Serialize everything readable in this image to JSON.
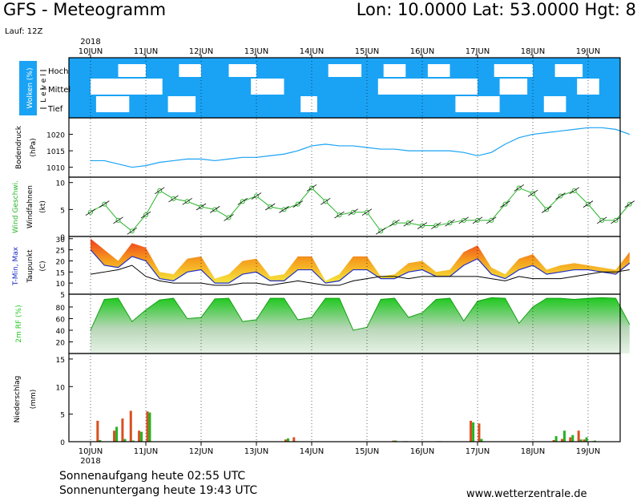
{
  "header": {
    "title": "GFS - Meteogramm",
    "location": "Lon: 10.0000  Lat: 53.0000  Hgt: 8",
    "run": "Lauf: 12Z"
  },
  "footer": {
    "sunrise": "Sonnenaufgang heute 02:55 UTC",
    "sunset": "Sonnenuntergang heute 19:43 UTC",
    "site": "www.wetterzentrale.de"
  },
  "colors": {
    "cloud_bg": "#1aa3f5",
    "pressure_line": "#1aa3f5",
    "wind_line": "#28b428",
    "precip_rain": "#d94f1e",
    "precip_conv": "#22b422",
    "rh_fill": "#22c822"
  },
  "chart_data": {
    "type": "line",
    "x_dates": [
      "10JUN",
      "11JUN",
      "12JUN",
      "13JUN",
      "14JUN",
      "15JUN",
      "16JUN",
      "17JUN",
      "18JUN",
      "19JUN"
    ],
    "year": "2018",
    "panels": [
      {
        "id": "clouds",
        "ylabel": [
          "Wolken (%)",
          "L e v e l"
        ],
        "levels": [
          "Hoch",
          "Mittel",
          "Tief"
        ],
        "clear_patches_hoch": [
          [
            0.5,
            1.0
          ],
          [
            1.6,
            2.0
          ],
          [
            2.5,
            3.0
          ],
          [
            4.3,
            4.9
          ],
          [
            5.3,
            5.7
          ],
          [
            6.1,
            6.5
          ],
          [
            7.3,
            8.0
          ],
          [
            8.4,
            8.9
          ]
        ],
        "clear_patches_mittel": [
          [
            0.0,
            1.3
          ],
          [
            2.9,
            3.5
          ],
          [
            5.2,
            7.0
          ],
          [
            7.4,
            7.9
          ],
          [
            8.8,
            9.2
          ]
        ],
        "clear_patches_tief": [
          [
            0.1,
            0.7
          ],
          [
            1.4,
            1.9
          ],
          [
            3.8,
            4.1
          ],
          [
            6.6,
            7.4
          ],
          [
            8.2,
            8.6
          ]
        ]
      },
      {
        "id": "pressure",
        "ylabel": [
          "Bodendruck",
          "(hPa)"
        ],
        "ylim": [
          1007,
          1025
        ],
        "yticks": [
          1010,
          1015,
          1020
        ],
        "series": [
          {
            "name": "",
            "t": [
              0,
              0.25,
              0.5,
              0.75,
              1.0,
              1.25,
              1.5,
              1.75,
              2.0,
              2.25,
              2.5,
              2.75,
              3.0,
              3.25,
              3.5,
              3.75,
              4.0,
              4.25,
              4.5,
              4.75,
              5.0,
              5.25,
              5.5,
              5.75,
              6.0,
              6.25,
              6.5,
              6.75,
              7.0,
              7.25,
              7.5,
              7.75,
              8.0,
              8.25,
              8.5,
              8.75,
              9.0,
              9.25,
              9.5,
              9.75
            ],
            "values": [
              1012,
              1012,
              1011,
              1010,
              1010.5,
              1011.5,
              1012,
              1012.5,
              1012.5,
              1012,
              1012.5,
              1013,
              1013,
              1013.5,
              1014,
              1015,
              1016.5,
              1017,
              1016.5,
              1016.5,
              1016,
              1015.5,
              1015.5,
              1015,
              1015,
              1015,
              1015,
              1014.5,
              1013.5,
              1014.5,
              1017,
              1019,
              1020,
              1020.5,
              1021,
              1021.5,
              1022,
              1022,
              1021.5,
              1020
            ]
          }
        ]
      },
      {
        "id": "wind",
        "ylabel": [
          "Wind Geschwi.",
          "Windfahnen",
          "(kt)"
        ],
        "ylim": [
          0,
          11
        ],
        "yticks": [
          0,
          5,
          10
        ],
        "series": [
          {
            "name": "Wind Geschwi.",
            "t": [
              0,
              0.25,
              0.5,
              0.75,
              1.0,
              1.25,
              1.5,
              1.75,
              2.0,
              2.25,
              2.5,
              2.75,
              3.0,
              3.25,
              3.5,
              3.75,
              4.0,
              4.25,
              4.5,
              4.75,
              5.0,
              5.25,
              5.5,
              5.75,
              6.0,
              6.25,
              6.5,
              6.75,
              7.0,
              7.25,
              7.5,
              7.75,
              8.0,
              8.25,
              8.5,
              8.75,
              9.0,
              9.25,
              9.5,
              9.75
            ],
            "values": [
              4.5,
              6,
              3,
              1,
              4,
              8.5,
              7,
              6.5,
              5.5,
              5,
              3.5,
              6.5,
              7.5,
              5.5,
              5,
              6,
              9,
              6.5,
              4,
              4.5,
              4.5,
              1,
              2.5,
              2.5,
              2,
              2,
              2.5,
              3,
              3,
              3,
              6,
              9,
              8,
              5,
              7.5,
              8.5,
              6,
              3,
              3,
              6
            ]
          }
        ]
      },
      {
        "id": "temperature",
        "ylabel": [
          "T-Min, Max",
          "Taupunkt",
          "(C)"
        ],
        "ylim": [
          5,
          31
        ],
        "yticks": [
          5,
          10,
          15,
          20,
          25,
          30
        ],
        "series": [
          {
            "name": "Max",
            "t": [
              0,
              0.25,
              0.5,
              0.75,
              1.0,
              1.25,
              1.5,
              1.75,
              2.0,
              2.25,
              2.5,
              2.75,
              3.0,
              3.25,
              3.5,
              3.75,
              4.0,
              4.25,
              4.5,
              4.75,
              5.0,
              5.25,
              5.5,
              5.75,
              6.0,
              6.25,
              6.5,
              6.75,
              7.0,
              7.25,
              7.5,
              7.75,
              8.0,
              8.25,
              8.5,
              8.75,
              9.0,
              9.25,
              9.5,
              9.75
            ],
            "values": [
              30,
              25,
              20,
              28,
              26,
              15,
              14,
              21,
              22,
              12,
              14,
              20,
              21,
              13,
              14,
              22,
              22,
              11,
              14,
              22,
              22,
              13,
              14,
              19,
              20,
              15,
              16,
              24,
              27,
              17,
              14,
              21,
              23,
              16,
              18,
              19,
              18,
              17,
              16,
              24
            ]
          },
          {
            "name": "T-Min",
            "t": [
              0,
              0.25,
              0.5,
              0.75,
              1.0,
              1.25,
              1.5,
              1.75,
              2.0,
              2.25,
              2.5,
              2.75,
              3.0,
              3.25,
              3.5,
              3.75,
              4.0,
              4.25,
              4.5,
              4.75,
              5.0,
              5.25,
              5.5,
              5.75,
              6.0,
              6.25,
              6.5,
              6.75,
              7.0,
              7.25,
              7.5,
              7.75,
              8.0,
              8.25,
              8.5,
              8.75,
              9.0,
              9.25,
              9.5,
              9.75
            ],
            "values": [
              25,
              18,
              17,
              22,
              20,
              12,
              11,
              15,
              16,
              10,
              10,
              14,
              15,
              11,
              11,
              16,
              16,
              10,
              11,
              16,
              16,
              12,
              12,
              15,
              16,
              13,
              13,
              18,
              21,
              14,
              12,
              16,
              18,
              14,
              15,
              16,
              16,
              15,
              14,
              19
            ]
          },
          {
            "name": "Taupunkt",
            "t": [
              0,
              0.25,
              0.5,
              0.75,
              1.0,
              1.25,
              1.5,
              1.75,
              2.0,
              2.25,
              2.5,
              2.75,
              3.0,
              3.25,
              3.5,
              3.75,
              4.0,
              4.25,
              4.5,
              4.75,
              5.0,
              5.25,
              5.5,
              5.75,
              6.0,
              6.25,
              6.5,
              6.75,
              7.0,
              7.25,
              7.5,
              7.75,
              8.0,
              8.25,
              8.5,
              8.75,
              9.0,
              9.25,
              9.5,
              9.75
            ],
            "values": [
              14,
              15,
              16,
              18,
              13,
              11,
              10,
              10,
              10,
              9,
              9,
              10,
              10,
              9,
              10,
              11,
              10,
              9,
              9,
              11,
              12,
              13,
              13,
              12,
              13,
              13,
              13,
              13,
              13,
              12,
              11,
              13,
              12,
              12,
              12,
              13,
              14,
              15,
              15,
              16
            ]
          }
        ]
      },
      {
        "id": "humidity",
        "ylabel": [
          "2m RF (%)"
        ],
        "ylim": [
          0,
          102
        ],
        "yticks": [
          20,
          40,
          60,
          80
        ],
        "series": [
          {
            "name": "",
            "t": [
              0,
              0.25,
              0.5,
              0.75,
              1.0,
              1.25,
              1.5,
              1.75,
              2.0,
              2.25,
              2.5,
              2.75,
              3.0,
              3.25,
              3.5,
              3.75,
              4.0,
              4.25,
              4.5,
              4.75,
              5.0,
              5.25,
              5.5,
              5.75,
              6.0,
              6.25,
              6.5,
              6.75,
              7.0,
              7.25,
              7.5,
              7.75,
              8.0,
              8.25,
              8.5,
              8.75,
              9.0,
              9.25,
              9.5,
              9.75
            ],
            "values": [
              40,
              93,
              95,
              55,
              75,
              92,
              95,
              60,
              62,
              94,
              95,
              55,
              58,
              95,
              95,
              58,
              62,
              95,
              95,
              40,
              45,
              93,
              95,
              62,
              70,
              93,
              95,
              56,
              90,
              96,
              95,
              52,
              80,
              95,
              95,
              93,
              95,
              96,
              95,
              50
            ]
          }
        ]
      },
      {
        "id": "precip",
        "ylabel": [
          "Niederschlag",
          "(mm)"
        ],
        "ylim": [
          0,
          16
        ],
        "yticks": [
          0,
          5,
          10,
          15
        ],
        "bars": [
          {
            "t": 0.15,
            "rain": 3.8,
            "conv": 0.3
          },
          {
            "t": 0.45,
            "rain": 2.0,
            "conv": 2.7
          },
          {
            "t": 0.6,
            "rain": 4.2,
            "conv": 0.5
          },
          {
            "t": 0.75,
            "rain": 5.6,
            "conv": 0.2
          },
          {
            "t": 0.9,
            "rain": 2.0,
            "conv": 1.8
          },
          {
            "t": 1.05,
            "rain": 5.5,
            "conv": 5.3
          },
          {
            "t": 3.55,
            "rain": 0.4,
            "conv": 0.6
          },
          {
            "t": 3.7,
            "rain": 0.8,
            "conv": 0.1
          },
          {
            "t": 5.5,
            "rain": 0.2,
            "conv": 0.2
          },
          {
            "t": 5.7,
            "rain": 0.1,
            "conv": 0.1
          },
          {
            "t": 6.3,
            "rain": 0.1,
            "conv": 0.1
          },
          {
            "t": 6.9,
            "rain": 3.8,
            "conv": 3.5
          },
          {
            "t": 7.05,
            "rain": 3.3,
            "conv": 0.5
          },
          {
            "t": 8.4,
            "rain": 0.3,
            "conv": 1.0
          },
          {
            "t": 8.55,
            "rain": 0.5,
            "conv": 2.0
          },
          {
            "t": 8.7,
            "rain": 0.8,
            "conv": 1.2
          },
          {
            "t": 8.85,
            "rain": 2.0,
            "conv": 0.4
          },
          {
            "t": 8.95,
            "rain": 0.4,
            "conv": 0.8
          },
          {
            "t": 9.1,
            "rain": 0.1,
            "conv": 0.2
          }
        ]
      }
    ]
  }
}
